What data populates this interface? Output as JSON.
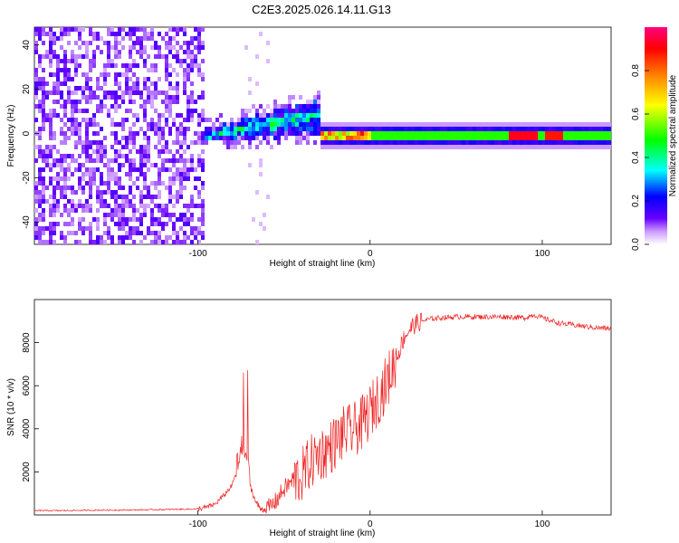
{
  "figure_title": "C2E3.2025.026.14.11.G13",
  "chart_data": [
    {
      "type": "heatmap",
      "title": "C2E3.2025.026.14.11.G13",
      "xlabel": "Height of straight line (km)",
      "ylabel": "Frequency (Hz)",
      "xlim": [
        -195,
        140
      ],
      "ylim": [
        -50,
        48
      ],
      "x_ticks": [
        -100,
        0,
        100
      ],
      "x_tick_labels": [
        "-100",
        "0",
        "100"
      ],
      "y_ticks": [
        40,
        20,
        0,
        -20,
        -40
      ],
      "y_tick_labels": [
        "40",
        "20",
        "0",
        "-20",
        "-40"
      ],
      "colorbar": {
        "label": "Normalized spectral amplitude",
        "range": [
          0,
          1
        ],
        "ticks": [
          0.0,
          0.2,
          0.4,
          0.6,
          0.8
        ],
        "tick_labels": [
          "0.0",
          "0.2",
          "0.4",
          "0.6",
          "0.8"
        ],
        "colormap": [
          "#ffffff",
          "#cc99ff",
          "#6600ff",
          "#0000ff",
          "#00ffff",
          "#00ff00",
          "#ffff00",
          "#ff8000",
          "#ff0000",
          "#ff0080"
        ]
      },
      "description_regions": [
        {
          "x_range": [
            -195,
            -98
          ],
          "frequency": "all",
          "amplitude": "low-noise"
        },
        {
          "x_range": [
            -98,
            -30
          ],
          "frequency_center": [
            0,
            10
          ],
          "amplitude": "mixed"
        },
        {
          "x_range": [
            -30,
            140
          ],
          "frequency_center": 0,
          "amplitude": "high"
        }
      ],
      "grid": false
    },
    {
      "type": "line",
      "xlabel": "Height of straight line (km)",
      "ylabel": "SNR (10 * v/v)",
      "xlim": [
        -195,
        140
      ],
      "ylim": [
        0,
        10000
      ],
      "x_ticks": [
        -100,
        0,
        100
      ],
      "x_tick_labels": [
        "-100",
        "0",
        "100"
      ],
      "y_ticks": [
        2000,
        4000,
        6000,
        8000
      ],
      "y_tick_labels": [
        "2000",
        "4000",
        "6000",
        "8000"
      ],
      "line_color": "#ee2222",
      "series": [
        {
          "x": [
            -195,
            -180,
            -160,
            -140,
            -120,
            -100,
            -95,
            -90,
            -85,
            -80,
            -76,
            -73,
            -70,
            -67,
            -64,
            -60,
            -55,
            -50,
            -45,
            -40,
            -35,
            -30,
            -25,
            -20,
            -15,
            -10,
            -5,
            0,
            5,
            10,
            15,
            20,
            25,
            30,
            35,
            40,
            50,
            60,
            70,
            80,
            90,
            95,
            100,
            110,
            120,
            130,
            140
          ],
          "values": [
            200,
            200,
            220,
            230,
            250,
            280,
            350,
            500,
            900,
            1400,
            2500,
            3500,
            1500,
            700,
            300,
            250,
            600,
            1200,
            1600,
            1800,
            2400,
            2800,
            3000,
            3400,
            3800,
            3900,
            4200,
            4800,
            5500,
            6200,
            7200,
            8300,
            8800,
            9000,
            9100,
            9150,
            9200,
            9200,
            9200,
            9200,
            9150,
            9300,
            9150,
            8900,
            8800,
            8700,
            8650
          ]
        }
      ],
      "grid": false
    }
  ]
}
